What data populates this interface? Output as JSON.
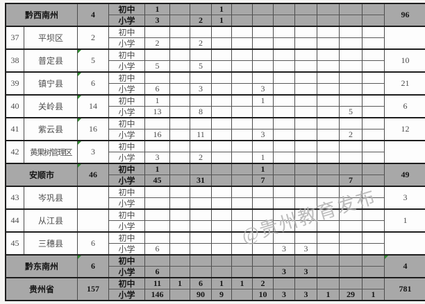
{
  "table": {
    "type_labels": {
      "junior": "初中",
      "primary": "小学"
    },
    "rows": [
      {
        "num": "",
        "region": "黔西南州",
        "count": "4",
        "highlight": true,
        "count_flag": false,
        "total_flag": false,
        "junior": [
          "1",
          "",
          "",
          "1",
          "",
          "",
          "",
          "",
          "",
          "",
          ""
        ],
        "primary": [
          "3",
          "",
          "2",
          "1",
          "",
          "",
          "",
          "",
          "",
          "",
          ""
        ],
        "total": "96"
      },
      {
        "num": "37",
        "region": "平坝区",
        "count": "2",
        "highlight": false,
        "count_flag": false,
        "total_flag": false,
        "junior": [
          "",
          "",
          "",
          "",
          "",
          "",
          "",
          "",
          "",
          "",
          ""
        ],
        "primary": [
          "2",
          "",
          "2",
          "",
          "",
          "",
          "",
          "",
          "",
          "",
          ""
        ],
        "total": ""
      },
      {
        "num": "38",
        "region": "普定县",
        "count": "5",
        "highlight": false,
        "count_flag": true,
        "total_flag": false,
        "junior": [
          "",
          "",
          "",
          "",
          "",
          "",
          "",
          "",
          "",
          "",
          ""
        ],
        "primary": [
          "5",
          "",
          "5",
          "",
          "",
          "",
          "",
          "",
          "",
          "",
          ""
        ],
        "total": "10"
      },
      {
        "num": "39",
        "region": "镇宁县",
        "count": "6",
        "highlight": false,
        "count_flag": true,
        "total_flag": false,
        "junior": [
          "",
          "",
          "",
          "",
          "",
          "",
          "",
          "",
          "",
          "",
          ""
        ],
        "primary": [
          "6",
          "",
          "3",
          "",
          "",
          "3",
          "",
          "",
          "",
          "",
          ""
        ],
        "total": "21"
      },
      {
        "num": "40",
        "region": "关岭县",
        "count": "14",
        "highlight": false,
        "count_flag": true,
        "total_flag": false,
        "junior": [
          "1",
          "",
          "",
          "",
          "",
          "1",
          "",
          "",
          "",
          "",
          ""
        ],
        "primary": [
          "13",
          "",
          "8",
          "",
          "",
          "",
          "",
          "",
          "",
          "5",
          ""
        ],
        "total": "6"
      },
      {
        "num": "41",
        "region": "紫云县",
        "count": "16",
        "highlight": false,
        "count_flag": true,
        "total_flag": false,
        "junior": [
          "",
          "",
          "",
          "",
          "",
          "",
          "",
          "",
          "",
          "",
          ""
        ],
        "primary": [
          "16",
          "",
          "11",
          "",
          "",
          "3",
          "",
          "",
          "",
          "2",
          ""
        ],
        "total": "12"
      },
      {
        "num": "42",
        "region": "黄果树管理区",
        "count": "3",
        "highlight": false,
        "count_flag": true,
        "total_flag": false,
        "squeeze": true,
        "junior": [
          "",
          "",
          "",
          "",
          "",
          "",
          "",
          "",
          "",
          "",
          ""
        ],
        "primary": [
          "3",
          "",
          "2",
          "",
          "",
          "1",
          "",
          "",
          "",
          "",
          ""
        ],
        "total": ""
      },
      {
        "num": "",
        "region": "安顺市",
        "count": "46",
        "highlight": true,
        "count_flag": true,
        "total_flag": false,
        "junior": [
          "1",
          "",
          "",
          "",
          "",
          "1",
          "",
          "",
          "",
          "",
          ""
        ],
        "primary": [
          "45",
          "",
          "31",
          "",
          "",
          "7",
          "",
          "",
          "",
          "7",
          ""
        ],
        "total": "49"
      },
      {
        "num": "43",
        "region": "岑巩县",
        "count": "",
        "highlight": false,
        "count_flag": false,
        "total_flag": false,
        "junior": [
          "",
          "",
          "",
          "",
          "",
          "",
          "",
          "",
          "",
          "",
          ""
        ],
        "primary": [
          "",
          "",
          "",
          "",
          "",
          "",
          "",
          "",
          "",
          "",
          ""
        ],
        "total": "3"
      },
      {
        "num": "44",
        "region": "从江县",
        "count": "",
        "highlight": false,
        "count_flag": false,
        "total_flag": false,
        "junior": [
          "",
          "",
          "",
          "",
          "",
          "",
          "",
          "",
          "",
          "",
          ""
        ],
        "primary": [
          "",
          "",
          "",
          "",
          "",
          "",
          "",
          "",
          "",
          "",
          ""
        ],
        "total": "1"
      },
      {
        "num": "45",
        "region": "三穗县",
        "count": "6",
        "highlight": false,
        "count_flag": false,
        "total_flag": false,
        "junior": [
          "",
          "",
          "",
          "",
          "",
          "",
          "",
          "",
          "",
          "",
          ""
        ],
        "primary": [
          "6",
          "",
          "",
          "",
          "",
          "",
          "3",
          "3",
          "",
          "",
          ""
        ],
        "total": ""
      },
      {
        "num": "",
        "region": "黔东南州",
        "count": "6",
        "highlight": true,
        "count_flag": true,
        "total_flag": true,
        "junior": [
          "",
          "",
          "",
          "",
          "",
          "",
          "",
          "",
          "",
          "",
          ""
        ],
        "primary": [
          "6",
          "",
          "",
          "",
          "",
          "",
          "3",
          "3",
          "",
          "",
          ""
        ],
        "total": "4"
      },
      {
        "num": "",
        "region": "贵州省",
        "count": "157",
        "highlight": true,
        "count_flag": false,
        "total_flag": false,
        "junior": [
          "11",
          "1",
          "6",
          "1",
          "1",
          "2",
          "",
          "",
          "",
          "",
          ""
        ],
        "primary": [
          "146",
          "",
          "90",
          "9",
          "",
          "10",
          "3",
          "3",
          "1",
          "29",
          "1"
        ],
        "total": "781"
      }
    ]
  },
  "watermark": {
    "text": "@贵州教育发布"
  },
  "colors": {
    "highlight_bg": "#a8a8a8",
    "flag_green": "#2e8b2e",
    "border_dark": "#1d1d1d",
    "grid_line": "#4c4c4c"
  }
}
